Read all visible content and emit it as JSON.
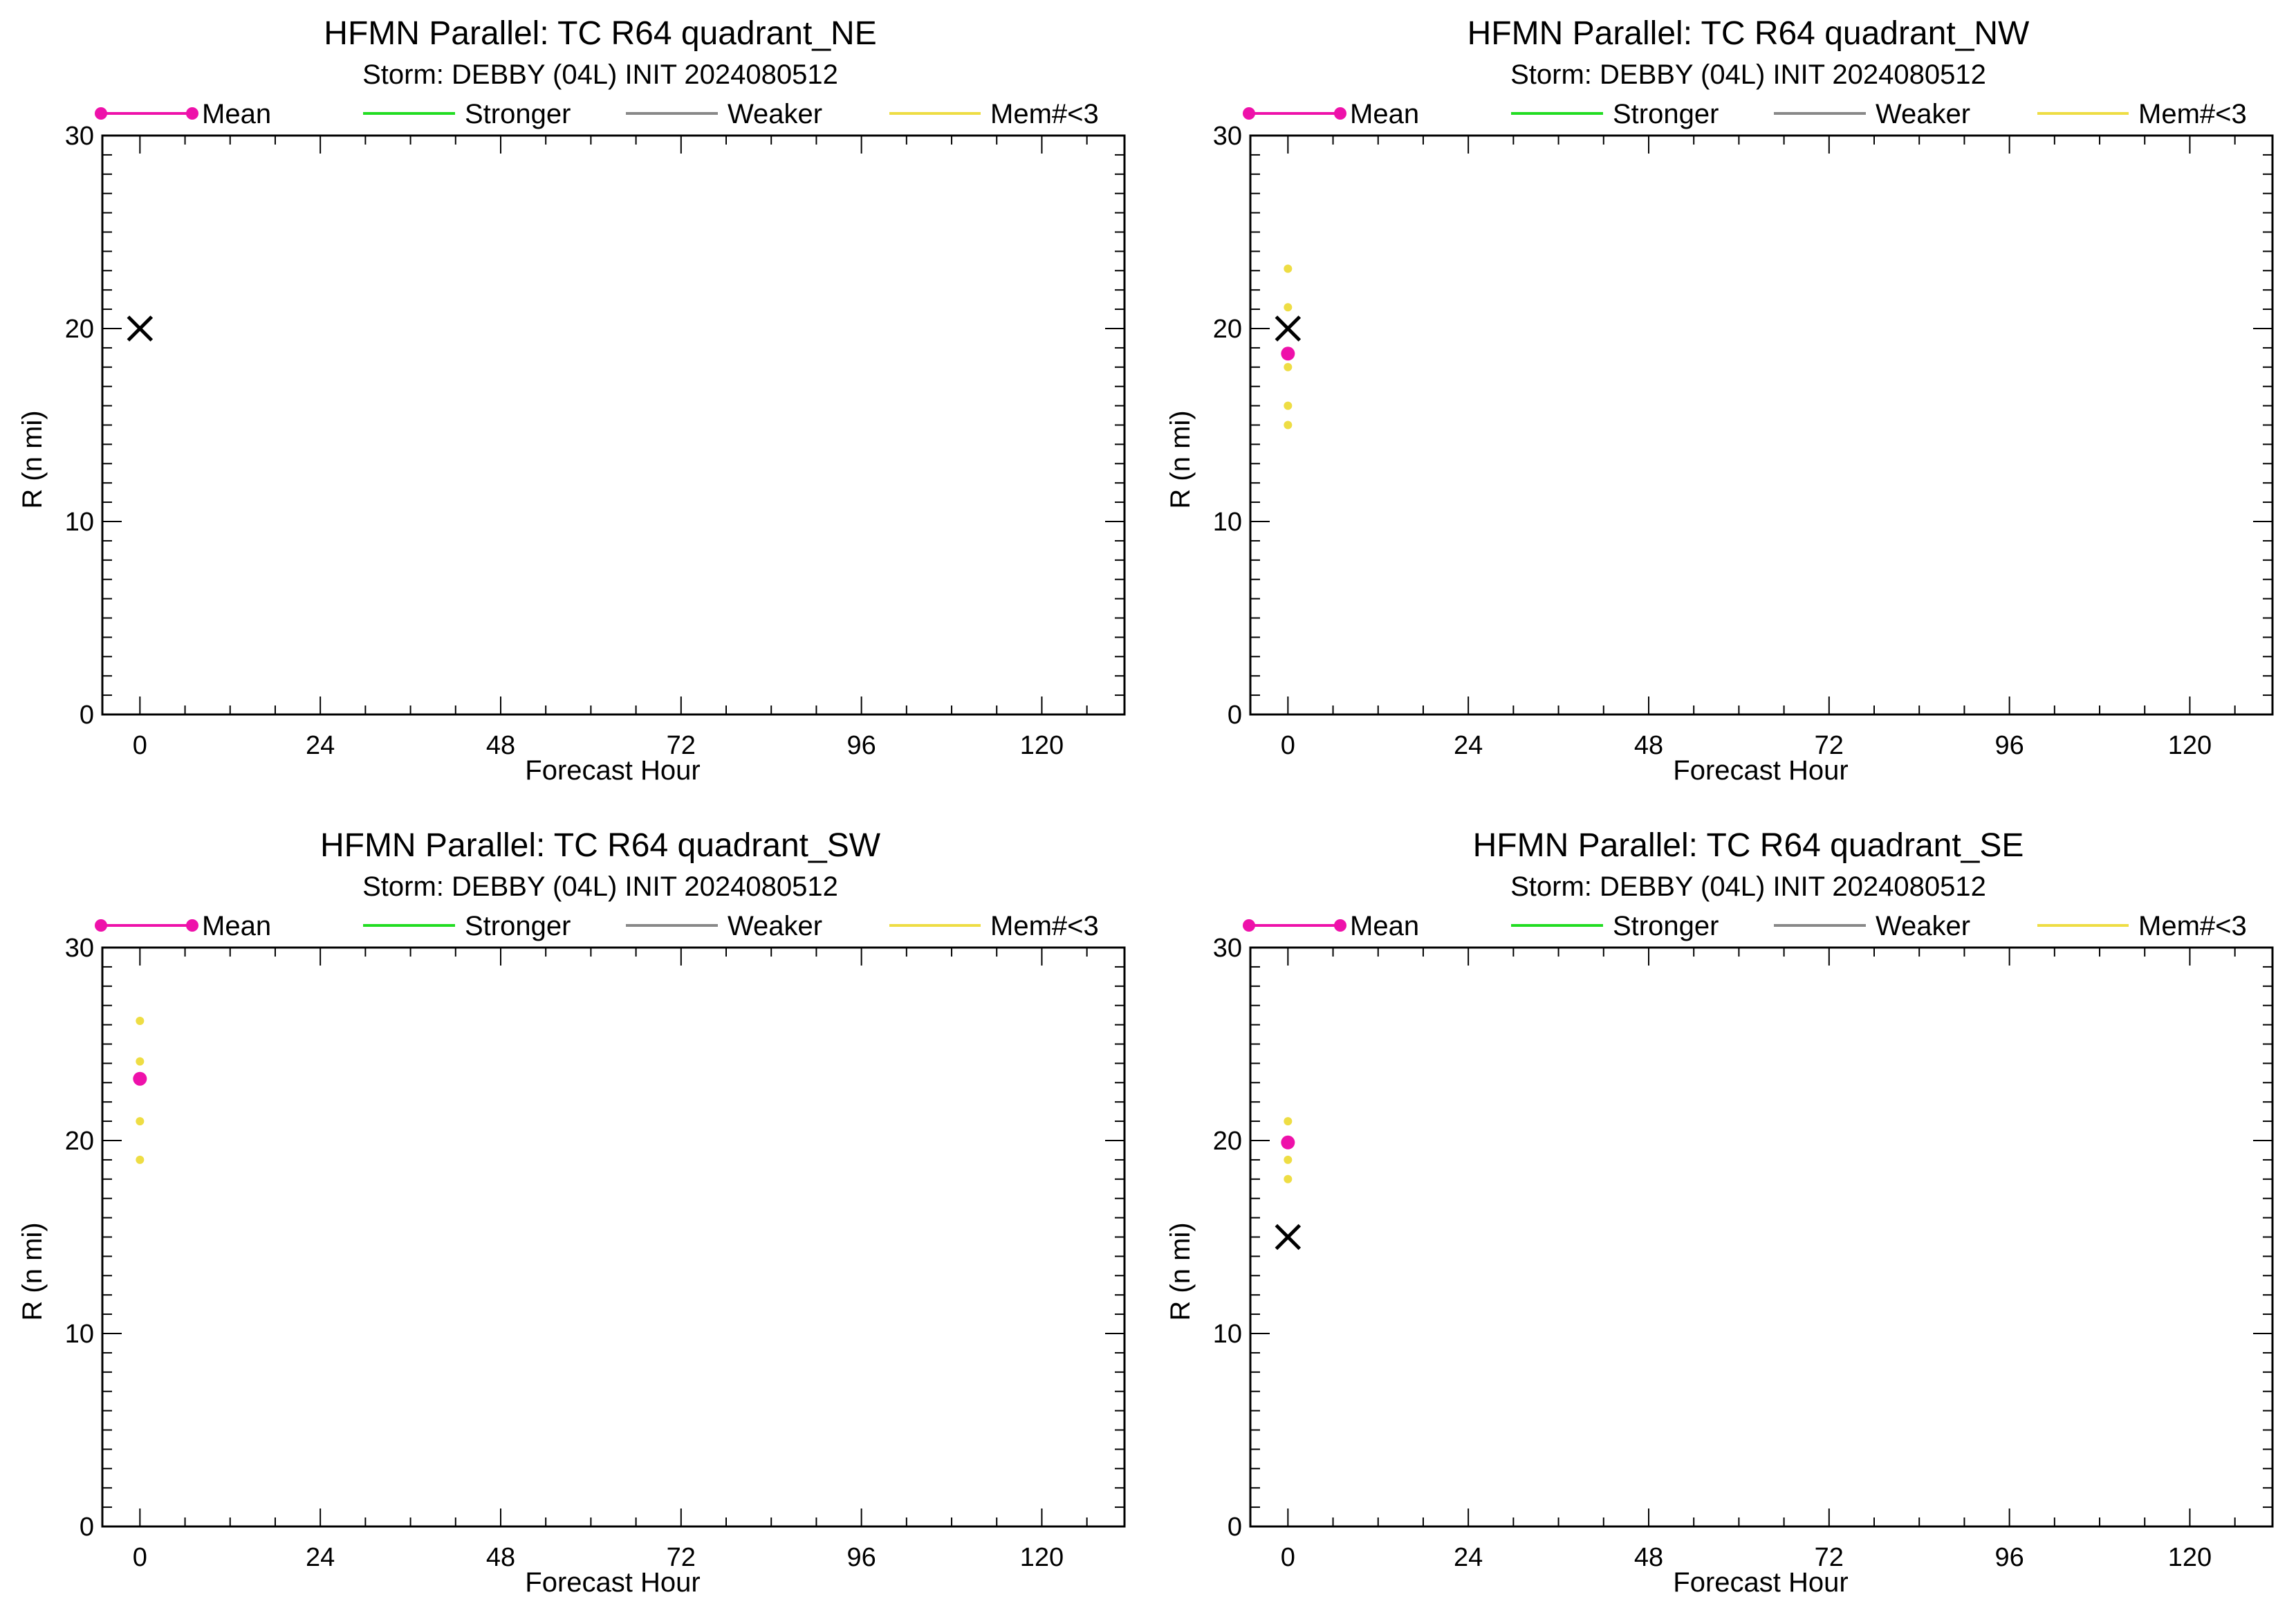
{
  "colors": {
    "mean": "#ee11aa",
    "stronger": "#22dd22",
    "weaker": "#888888",
    "members": "#eedd44",
    "best_track": "#000000"
  },
  "legend": [
    "Mean",
    "Stronger",
    "Weaker",
    "Mem#<3"
  ],
  "chart_data": [
    {
      "type": "scatter",
      "title": "HFMN Parallel: TC  R64 quadrant_NE",
      "subtitle": "Storm: DEBBY (04L) INIT 2024080512",
      "xlabel": "Forecast Hour",
      "ylabel": "R (n mi)",
      "xlim": [
        -5,
        131
      ],
      "ylim": [
        0,
        30
      ],
      "xticks": [
        0,
        24,
        48,
        72,
        96,
        120
      ],
      "yticks": [
        0,
        10,
        20,
        30
      ],
      "grid": false,
      "legend_position": "top",
      "mean": [],
      "members": [],
      "best_track": [
        {
          "x": 0,
          "y": 20
        }
      ]
    },
    {
      "type": "scatter",
      "title": "HFMN Parallel: TC  R64 quadrant_NW",
      "subtitle": "Storm: DEBBY (04L) INIT 2024080512",
      "xlabel": "Forecast Hour",
      "ylabel": "R (n mi)",
      "xlim": [
        -5,
        131
      ],
      "ylim": [
        0,
        30
      ],
      "xticks": [
        0,
        24,
        48,
        72,
        96,
        120
      ],
      "yticks": [
        0,
        10,
        20,
        30
      ],
      "grid": false,
      "legend_position": "top",
      "mean": [
        {
          "x": 0,
          "y": 18.7
        }
      ],
      "members": [
        {
          "x": 0,
          "y": 23.1
        },
        {
          "x": 0,
          "y": 21.1
        },
        {
          "x": 0,
          "y": 18.0
        },
        {
          "x": 0,
          "y": 16.0
        },
        {
          "x": 0,
          "y": 15.0
        }
      ],
      "best_track": [
        {
          "x": 0,
          "y": 20
        }
      ]
    },
    {
      "type": "scatter",
      "title": "HFMN Parallel: TC  R64 quadrant_SW",
      "subtitle": "Storm: DEBBY (04L) INIT 2024080512",
      "xlabel": "Forecast Hour",
      "ylabel": "R (n mi)",
      "xlim": [
        -5,
        131
      ],
      "ylim": [
        0,
        30
      ],
      "xticks": [
        0,
        24,
        48,
        72,
        96,
        120
      ],
      "yticks": [
        0,
        10,
        20,
        30
      ],
      "grid": false,
      "legend_position": "top",
      "mean": [
        {
          "x": 0,
          "y": 23.2
        }
      ],
      "members": [
        {
          "x": 0,
          "y": 26.2
        },
        {
          "x": 0,
          "y": 24.1
        },
        {
          "x": 0,
          "y": 21.0
        },
        {
          "x": 0,
          "y": 19.0
        }
      ],
      "best_track": []
    },
    {
      "type": "scatter",
      "title": "HFMN Parallel: TC  R64 quadrant_SE",
      "subtitle": "Storm: DEBBY (04L) INIT 2024080512",
      "xlabel": "Forecast Hour",
      "ylabel": "R (n mi)",
      "xlim": [
        -5,
        131
      ],
      "ylim": [
        0,
        30
      ],
      "xticks": [
        0,
        24,
        48,
        72,
        96,
        120
      ],
      "yticks": [
        0,
        10,
        20,
        30
      ],
      "grid": false,
      "legend_position": "top",
      "mean": [
        {
          "x": 0,
          "y": 19.9
        }
      ],
      "members": [
        {
          "x": 0,
          "y": 21.0
        },
        {
          "x": 0,
          "y": 19.0
        },
        {
          "x": 0,
          "y": 18.0
        }
      ],
      "best_track": [
        {
          "x": 0,
          "y": 15
        }
      ]
    }
  ]
}
